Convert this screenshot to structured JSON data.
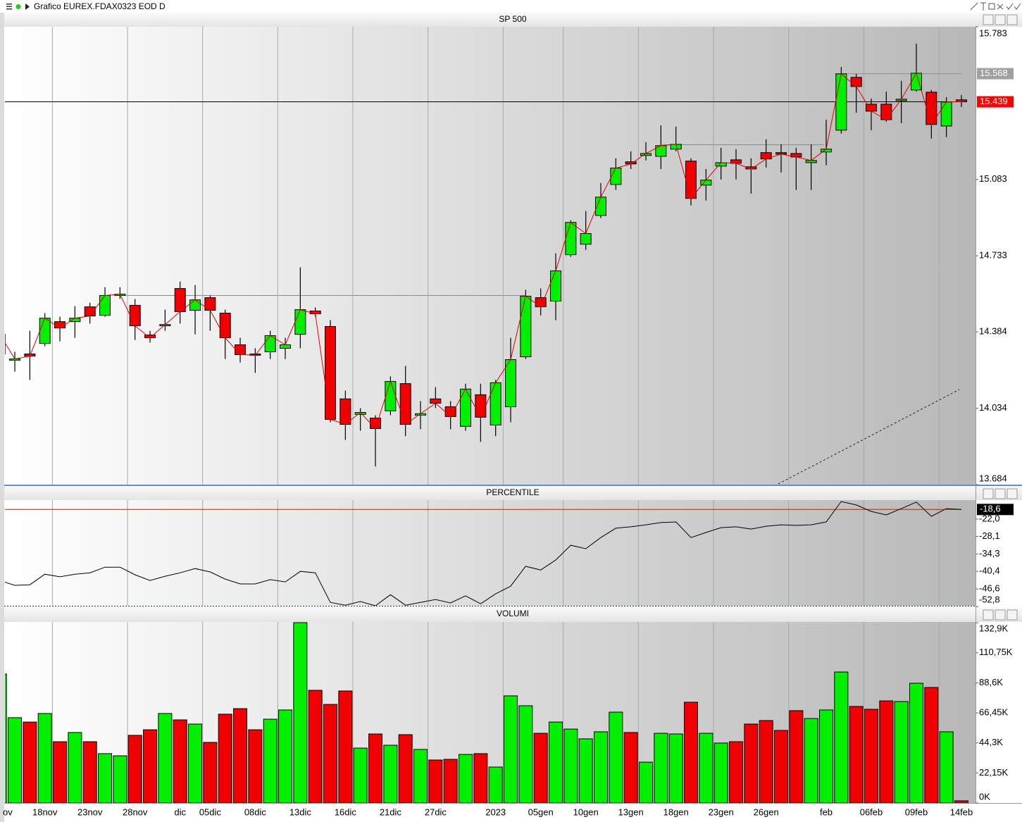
{
  "window": {
    "title": "Grafico EUREX.FDAX0323 EOD D"
  },
  "chart_data": [
    {
      "type": "candlestick",
      "title": "SP 500",
      "open": [
        14283,
        14254,
        14283,
        14331,
        14431,
        14431,
        14499,
        14460,
        14551,
        14506,
        14370,
        14412,
        14583,
        14483,
        14541,
        14470,
        14325,
        14283,
        14293,
        14309,
        14373,
        14480,
        14409,
        14077,
        14006,
        13989,
        14022,
        14147,
        14002,
        14077,
        14041,
        13951,
        14096,
        13957,
        14041,
        14270,
        14541,
        14525,
        14738,
        14786,
        14918,
        15060,
        15164,
        15193,
        15189,
        15222,
        15167,
        15057,
        15144,
        15173,
        15141,
        15206,
        15206,
        15202,
        15160,
        15209,
        15309,
        15551,
        15428,
        15428,
        15444,
        15493,
        15483,
        15328,
        15448
      ],
      "high": [
        14389,
        14293,
        14389,
        14470,
        14454,
        14502,
        14518,
        14589,
        14589,
        14535,
        14389,
        14486,
        14615,
        14599,
        14551,
        14486,
        14357,
        14309,
        14389,
        14357,
        14680,
        14496,
        14438,
        14115,
        14035,
        14002,
        14180,
        14228,
        14067,
        14131,
        14067,
        14147,
        14147,
        14164,
        14357,
        14577,
        14583,
        14744,
        14896,
        14938,
        15067,
        15180,
        15212,
        15254,
        15331,
        15325,
        15180,
        15131,
        15228,
        15222,
        15180,
        15267,
        15244,
        15228,
        15244,
        15357,
        15599,
        15567,
        15454,
        15486,
        15535,
        15706,
        15493,
        15460,
        15470
      ],
      "low": [
        14277,
        14202,
        14164,
        14318,
        14341,
        14357,
        14422,
        14454,
        14535,
        14347,
        14335,
        14389,
        14422,
        14373,
        14389,
        14260,
        14244,
        14196,
        14260,
        14260,
        14309,
        14454,
        13970,
        13889,
        13931,
        13767,
        14002,
        13906,
        13938,
        14035,
        13938,
        13931,
        13880,
        13906,
        13970,
        14260,
        14460,
        14438,
        14728,
        14760,
        14906,
        15035,
        15131,
        15170,
        15131,
        15212,
        14964,
        14986,
        15083,
        15083,
        15018,
        15138,
        15115,
        15035,
        15035,
        15148,
        15293,
        15389,
        15309,
        15348,
        15341,
        15486,
        15270,
        15277,
        15415
      ],
      "close": [
        14373,
        14260,
        14273,
        14447,
        14402,
        14447,
        14457,
        14551,
        14557,
        14412,
        14357,
        14418,
        14477,
        14531,
        14483,
        14357,
        14280,
        14277,
        14367,
        14325,
        14486,
        14467,
        13983,
        13960,
        14015,
        13941,
        14157,
        13960,
        14009,
        14057,
        13996,
        14122,
        13993,
        14151,
        14257,
        14548,
        14499,
        14664,
        14886,
        14835,
        15002,
        15135,
        15154,
        15202,
        15238,
        15244,
        14996,
        15080,
        15160,
        15157,
        15131,
        15177,
        15199,
        15186,
        15170,
        15222,
        15567,
        15509,
        15396,
        15357,
        15451,
        15570,
        15335,
        15438,
        15439
      ],
      "up_color": "#00f000",
      "down_color": "#f00000",
      "ma_color": "#e00000",
      "ylim": [
        13684,
        15783
      ],
      "yticks": [
        {
          "value": 15783,
          "label": "15.783"
        },
        {
          "value": 15083,
          "label": "15.083"
        },
        {
          "value": 14733,
          "label": "14.733"
        },
        {
          "value": 14384,
          "label": "14.384"
        },
        {
          "value": 14034,
          "label": "14.034"
        },
        {
          "value": 13684,
          "label": "13.684"
        }
      ],
      "levels": [
        {
          "value": 15568,
          "label": "15.568",
          "color": "#a0a0a0",
          "line_color": "#909090"
        },
        {
          "value": 15439,
          "label": "15.439",
          "color": "#ff0000",
          "line_color": "#000000"
        }
      ]
    },
    {
      "type": "line",
      "title": "PERCENTILE",
      "values": [
        -43.6,
        -45.3,
        -45.1,
        -41.4,
        -42.3,
        -41.4,
        -40.9,
        -38.9,
        -38.9,
        -41.6,
        -43.6,
        -42.1,
        -40.9,
        -39.4,
        -40.6,
        -43.1,
        -44.8,
        -44.8,
        -43.3,
        -44.1,
        -40.4,
        -40.9,
        -51.3,
        -52.3,
        -51.0,
        -52.5,
        -48.6,
        -52.3,
        -51.3,
        -50.3,
        -51.5,
        -49.0,
        -51.8,
        -48.3,
        -45.6,
        -38.6,
        -39.9,
        -36.4,
        -31.2,
        -32.4,
        -28.5,
        -25.2,
        -24.7,
        -24.0,
        -23.2,
        -23.0,
        -28.5,
        -26.7,
        -25.0,
        -24.7,
        -25.5,
        -24.5,
        -24.0,
        -24.2,
        -24.0,
        -23.0,
        -15.8,
        -17.0,
        -19.3,
        -20.5,
        -18.3,
        -16.0,
        -21.0,
        -18.3,
        -18.6
      ],
      "color": "#000000",
      "ylim": [
        -52.5,
        -15.3
      ],
      "yticks": [
        {
          "value": -22.0,
          "label": "-22,0"
        },
        {
          "value": -28.1,
          "label": "-28,1"
        },
        {
          "value": -34.3,
          "label": "-34,3"
        },
        {
          "value": -40.4,
          "label": "-40,4"
        },
        {
          "value": -46.6,
          "label": "-46,6"
        },
        {
          "value": -52.8,
          "label": "-52,8"
        }
      ],
      "levels": [
        {
          "value": -18.6,
          "label": "-18,6",
          "color": "#000000",
          "line_color": "#ff0000"
        }
      ]
    },
    {
      "type": "bar",
      "title": "VOLUMI",
      "categories": [
        "ov",
        null,
        null,
        "18nov",
        null,
        null,
        "23nov",
        null,
        null,
        "28nov",
        null,
        null,
        "dic",
        null,
        "05dic",
        null,
        null,
        "08dic",
        null,
        null,
        "13dic",
        null,
        null,
        "16dic",
        null,
        null,
        "21dic",
        null,
        null,
        "27dic",
        null,
        null,
        null,
        "2023",
        null,
        null,
        "05gen",
        null,
        null,
        "10gen",
        null,
        null,
        "13gen",
        null,
        null,
        "18gen",
        null,
        null,
        "23gen",
        null,
        null,
        "26gen",
        null,
        null,
        null,
        "feb",
        null,
        null,
        "06feb",
        null,
        null,
        "09feb",
        null,
        null,
        "14feb"
      ],
      "values": [
        95.1,
        62.9,
        59.7,
        66.0,
        45.2,
        52.0,
        45.2,
        36.4,
        34.8,
        49.9,
        54.0,
        66.0,
        61.3,
        58.2,
        44.7,
        65.5,
        69.6,
        54.0,
        61.8,
        68.6,
        133.0,
        83.1,
        72.7,
        82.6,
        40.5,
        50.9,
        42.6,
        50.4,
        39.5,
        31.7,
        32.2,
        35.8,
        36.4,
        26.5,
        79.0,
        71.7,
        51.4,
        59.7,
        54.5,
        47.3,
        52.5,
        67.0,
        52.0,
        30.1,
        51.4,
        50.9,
        74.3,
        51.4,
        44.2,
        45.2,
        58.2,
        60.8,
        53.5,
        68.1,
        62.3,
        68.6,
        96.6,
        71.2,
        69.1,
        75.3,
        74.8,
        88.3,
        85.2,
        52.5,
        1.6
      ],
      "up_color": "#00f000",
      "down_color": "#f00000",
      "ylim": [
        0,
        133.5
      ],
      "yticks": [
        {
          "value": 132.9,
          "label": "132,9K"
        },
        {
          "value": 110.75,
          "label": "110,75K"
        },
        {
          "value": 88.6,
          "label": "88,6K"
        },
        {
          "value": 66.45,
          "label": "66,45K"
        },
        {
          "value": 44.3,
          "label": "44,3K"
        },
        {
          "value": 22.15,
          "label": "22,15K"
        },
        {
          "value": 0,
          "label": "0K"
        }
      ]
    }
  ]
}
